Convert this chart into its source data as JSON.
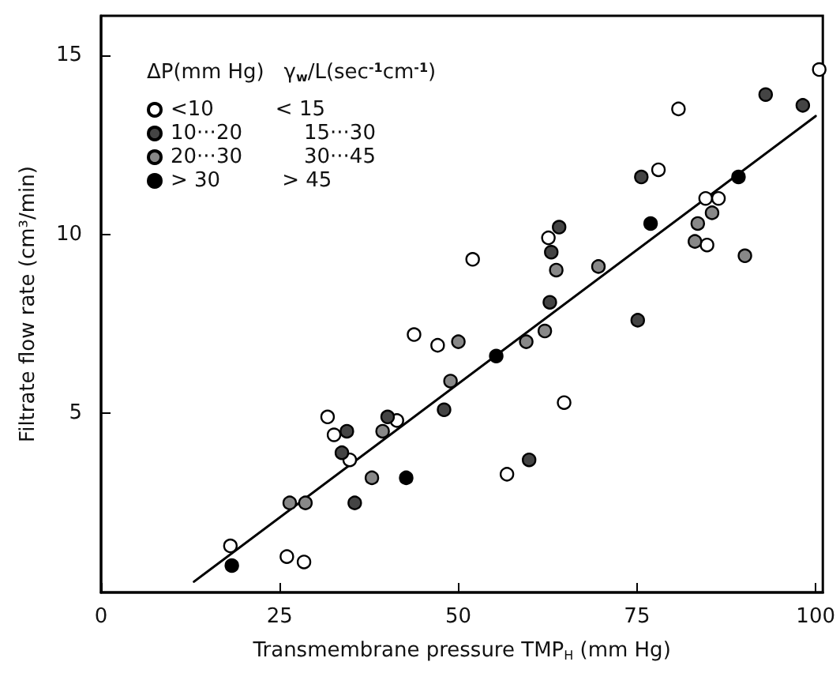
{
  "chart_data": {
    "type": "scatter",
    "xlabel": "Transmembrane pressure TMP$_{H}$ (mm Hg)",
    "ylabel": "Filtrate flow rate (cm³/min)",
    "legend_title": "ΔP(mm Hg)  γ$_{w}$/L(sec$^{-1}$cm$^{-1}$)",
    "xlim": [
      0,
      101
    ],
    "ylim": [
      0,
      16.1
    ],
    "xticks": [
      0,
      25,
      50,
      75,
      100
    ],
    "yticks": [
      5,
      10,
      15
    ],
    "legend": "top left",
    "marker": "circle",
    "grid": false,
    "series": [
      {
        "name": "<10  < 15",
        "color": "#ffffff",
        "x": [
          100.5,
          80.8,
          78,
          84.6,
          86.4,
          84.8,
          52,
          62.6,
          64.8,
          56.8,
          43.8,
          47.1,
          31.7,
          32.6,
          34.8,
          41.4,
          18.1,
          26,
          28.4
        ],
        "values": [
          14.6,
          13.5,
          11.8,
          11.0,
          11.0,
          9.7,
          9.3,
          9.9,
          5.3,
          3.3,
          7.2,
          6.9,
          4.9,
          4.4,
          3.7,
          4.8,
          1.3,
          1.0,
          0.85
        ]
      },
      {
        "name": "10···20  15···30",
        "color": "#444444",
        "x": [
          93,
          98.2,
          75.6,
          63,
          64.1,
          62.8,
          75.1,
          48,
          59.9,
          35.5,
          33.7,
          40.1,
          34.4
        ],
        "values": [
          13.9,
          13.6,
          11.6,
          9.5,
          10.2,
          8.1,
          7.6,
          5.1,
          3.7,
          2.5,
          3.9,
          4.9,
          4.5
        ]
      },
      {
        "name": "20···30  30···45",
        "color": "#888888",
        "x": [
          83.5,
          85.5,
          83.1,
          90.1,
          63.7,
          69.6,
          62.1,
          59.5,
          50,
          48.9,
          39.4,
          37.9,
          26.4,
          28.6
        ],
        "values": [
          10.3,
          10.6,
          9.8,
          9.4,
          9.0,
          9.1,
          7.3,
          7.0,
          7.0,
          5.9,
          4.5,
          3.2,
          2.5,
          2.5
        ]
      },
      {
        "name": "> 30  > 45",
        "color": "#000000",
        "x": [
          76.9,
          89.2,
          55.3,
          42.7,
          18.3
        ],
        "values": [
          10.3,
          11.6,
          6.6,
          3.2,
          0.75
        ]
      },
      {
        "type": "line",
        "color": "#000000",
        "x": [
          13,
          100
        ],
        "values": [
          0.3,
          13.3
        ],
        "marker": "none",
        "line_style": "solid"
      }
    ]
  }
}
